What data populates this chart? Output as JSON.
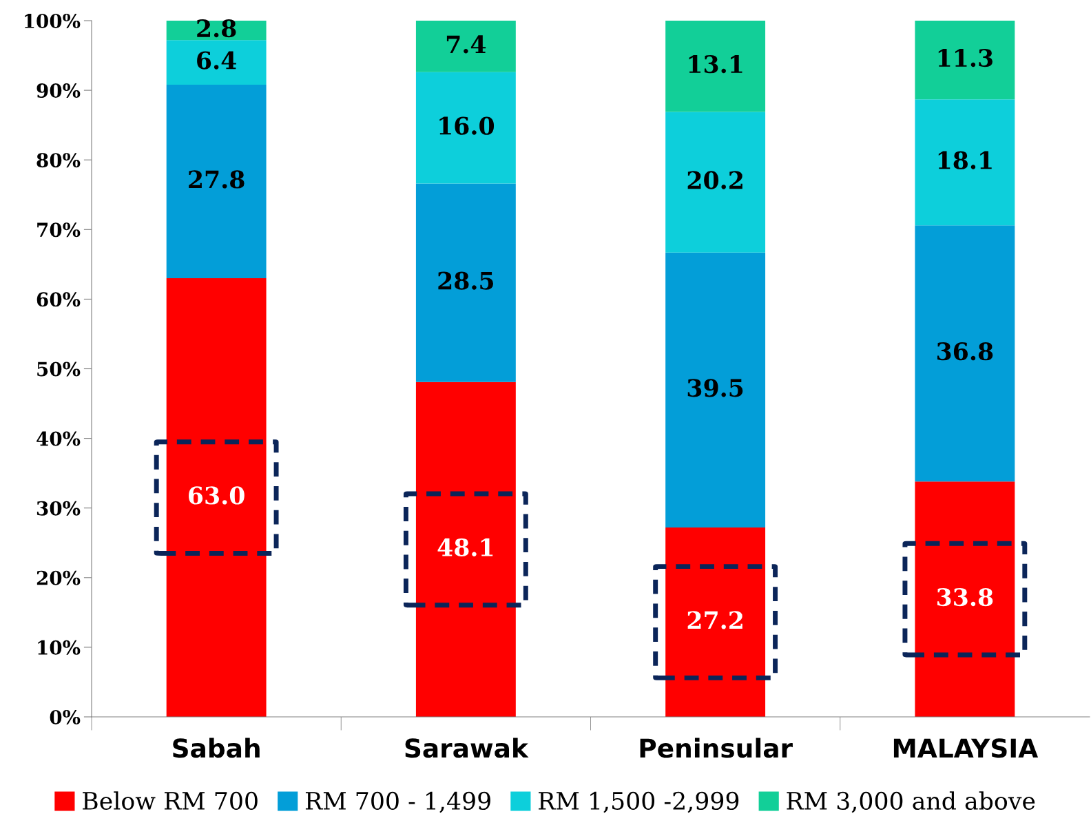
{
  "chart_data": {
    "type": "bar",
    "stacked": true,
    "categories": [
      "Sabah",
      "Sarawak",
      "Peninsular",
      "MALAYSIA"
    ],
    "series": [
      {
        "name": "Below RM 700",
        "color": "#ff0000",
        "values": [
          63.0,
          48.1,
          27.2,
          33.8
        ],
        "value_labels": [
          "63.0",
          "48.1",
          "27.2",
          "33.8"
        ]
      },
      {
        "name": "RM 700 - 1,499",
        "color": "#039ed8",
        "values": [
          27.8,
          28.5,
          39.5,
          36.8
        ],
        "value_labels": [
          "27.8",
          "28.5",
          "39.5",
          "36.8"
        ]
      },
      {
        "name": "RM 1,500 -2,999",
        "color": "#0dcfdb",
        "values": [
          6.4,
          16.0,
          20.2,
          18.1
        ],
        "value_labels": [
          "6.4",
          "16.0",
          "20.2",
          "18.1"
        ]
      },
      {
        "name": "RM 3,000 and above",
        "color": "#12cf98",
        "values": [
          2.8,
          7.4,
          13.1,
          11.3
        ],
        "value_labels": [
          "2.8",
          "7.4",
          "13.1",
          "11.3"
        ]
      }
    ],
    "ylim": [
      0,
      100
    ],
    "yticks": [
      {
        "value": 0,
        "label": "0%"
      },
      {
        "value": 10,
        "label": "10%"
      },
      {
        "value": 20,
        "label": "20%"
      },
      {
        "value": 30,
        "label": "30%"
      },
      {
        "value": 40,
        "label": "40%"
      },
      {
        "value": 50,
        "label": "50%"
      },
      {
        "value": 60,
        "label": "60%"
      },
      {
        "value": 70,
        "label": "70%"
      },
      {
        "value": 80,
        "label": "80%"
      },
      {
        "value": 90,
        "label": "90%"
      },
      {
        "value": 100,
        "label": "100%"
      }
    ],
    "grid": false,
    "legend": "bottom"
  }
}
